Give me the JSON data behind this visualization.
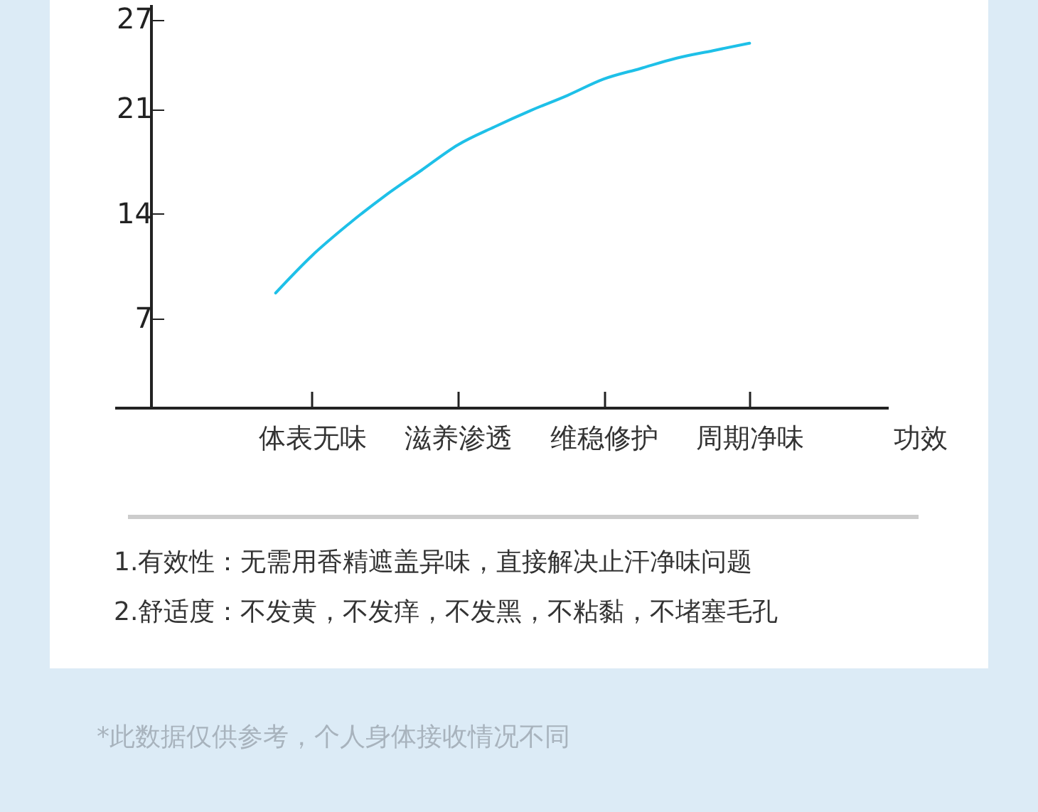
{
  "chart_data": {
    "type": "line",
    "xlabel": "功效",
    "categories": [
      null,
      "体表无味",
      null,
      null,
      null,
      "滋养渗透",
      null,
      null,
      null,
      "维稳修护",
      null,
      null,
      null,
      "周期净味"
    ],
    "series": [
      {
        "color": "#1ec0e8",
        "values": [
          8.7,
          11.2,
          13.3,
          15.2,
          16.9,
          18.6,
          19.8,
          20.9,
          21.9,
          23.0,
          23.7,
          24.4,
          24.9,
          25.4
        ]
      }
    ],
    "ylim": [
      1,
      28
    ],
    "yticks": [
      7,
      14,
      21,
      27
    ],
    "grid": false,
    "marker": "none",
    "line_style": "solid",
    "annotations": [
      "1.有效性：无需用香精遮盖异味，直接解决止汗净味问题",
      "2.舒适度：不发黄，不发痒，不发黑，不粘黏，不堵塞毛孔",
      "*此数据仅供参考，个人身体接收情况不同"
    ]
  }
}
